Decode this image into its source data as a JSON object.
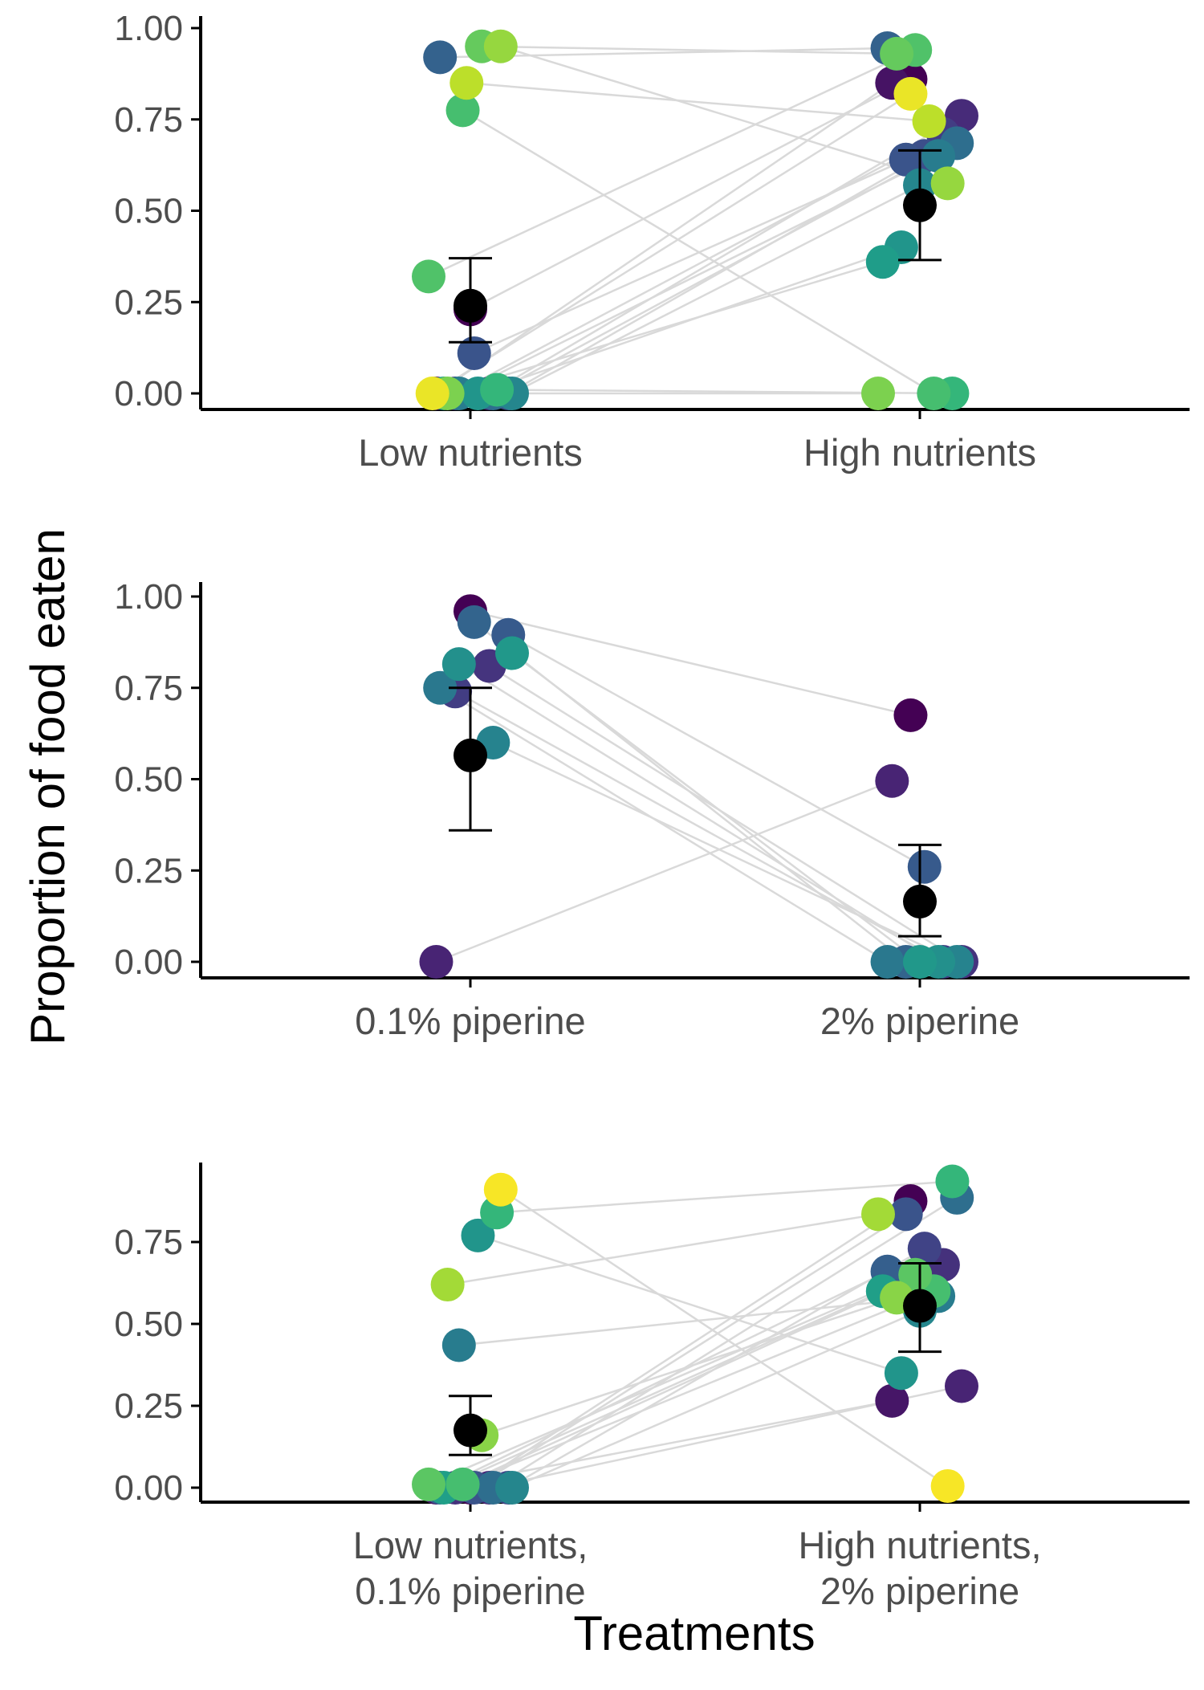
{
  "y_title": "Proportion of food eaten",
  "x_title": "Treatments",
  "colors": {
    "mean_point": "#000000",
    "connector": "#d9d9d9",
    "palette": "viridis"
  },
  "chart_data": [
    {
      "type": "scatter",
      "panel": "nutrients",
      "categories": [
        "Low nutrients",
        "High nutrients"
      ],
      "yticks": [
        "0.00",
        "0.25",
        "0.50",
        "0.75",
        "1.00"
      ],
      "ylim": [
        -0.04,
        1.04
      ],
      "mean": [
        0.24,
        0.515
      ],
      "error": [
        [
          0.14,
          0.37
        ],
        [
          0.365,
          0.665
        ]
      ],
      "pairs": [
        {
          "a": 0.23,
          "b": 0.86,
          "c": 0.0
        },
        {
          "a": 0.0,
          "b": 0.85,
          "c": 0.05
        },
        {
          "a": 0.0,
          "b": 0.76,
          "c": 0.12
        },
        {
          "a": 0.0,
          "b": 0.71,
          "c": 0.18
        },
        {
          "a": 0.0,
          "b": 0.65,
          "c": 0.24
        },
        {
          "a": 0.11,
          "b": 0.64,
          "c": 0.26
        },
        {
          "a": 0.92,
          "b": 0.945,
          "c": 0.31
        },
        {
          "a": 0.0,
          "b": 0.685,
          "c": 0.36
        },
        {
          "a": 0.0,
          "b": 0.65,
          "c": 0.42
        },
        {
          "a": 0.0,
          "b": 0.57,
          "c": 0.46
        },
        {
          "a": 0.0,
          "b": 0.4,
          "c": 0.52
        },
        {
          "a": 0.0,
          "b": 0.36,
          "c": 0.55
        },
        {
          "a": 0.01,
          "b": 0.0,
          "c": 0.66
        },
        {
          "a": 0.775,
          "b": 0.0,
          "c": 0.7
        },
        {
          "a": 0.32,
          "b": 0.94,
          "c": 0.72
        },
        {
          "a": 0.95,
          "b": 0.93,
          "c": 0.76
        },
        {
          "a": 0.0,
          "b": 0.0,
          "c": 0.8
        },
        {
          "a": 0.95,
          "b": 0.575,
          "c": 0.84
        },
        {
          "a": 0.85,
          "b": 0.745,
          "c": 0.9
        },
        {
          "a": 0.0,
          "b": 0.82,
          "c": 0.97
        }
      ]
    },
    {
      "type": "scatter",
      "panel": "piperine",
      "categories": [
        "0.1% piperine",
        "2% piperine"
      ],
      "yticks": [
        "0.00",
        "0.25",
        "0.50",
        "0.75",
        "1.00"
      ],
      "ylim": [
        -0.04,
        1.04
      ],
      "mean": [
        0.565,
        0.165
      ],
      "error": [
        [
          0.36,
          0.75
        ],
        [
          0.07,
          0.32
        ]
      ],
      "pairs": [
        {
          "a": 0.96,
          "b": 0.675,
          "c": 0.0
        },
        {
          "a": 0.0,
          "b": 0.495,
          "c": 0.1
        },
        {
          "a": 0.81,
          "b": 0.0,
          "c": 0.15
        },
        {
          "a": 0.74,
          "b": 0.0,
          "c": 0.18
        },
        {
          "a": 0.895,
          "b": 0.26,
          "c": 0.28
        },
        {
          "a": 0.93,
          "b": 0.0,
          "c": 0.32
        },
        {
          "a": 0.75,
          "b": 0.0,
          "c": 0.4
        },
        {
          "a": 0.6,
          "b": 0.0,
          "c": 0.45
        },
        {
          "a": 0.815,
          "b": 0.0,
          "c": 0.5
        },
        {
          "a": 0.845,
          "b": 0.0,
          "c": 0.53
        }
      ]
    },
    {
      "type": "scatter",
      "panel": "combined",
      "categories": [
        "Low nutrients,\n0.1% piperine",
        "High nutrients,\n2% piperine"
      ],
      "yticks": [
        "0.00",
        "0.25",
        "0.50",
        "0.75"
      ],
      "ylim": [
        -0.04,
        0.98
      ],
      "mean": [
        0.175,
        0.555
      ],
      "error": [
        [
          0.1,
          0.28
        ],
        [
          0.415,
          0.685
        ]
      ],
      "pairs": [
        {
          "a": 0.0,
          "b": 0.875,
          "c": 0.0
        },
        {
          "a": 0.0,
          "b": 0.265,
          "c": 0.06
        },
        {
          "a": 0.0,
          "b": 0.31,
          "c": 0.1
        },
        {
          "a": 0.0,
          "b": 0.68,
          "c": 0.14
        },
        {
          "a": 0.0,
          "b": 0.73,
          "c": 0.2
        },
        {
          "a": 0.0,
          "b": 0.835,
          "c": 0.26
        },
        {
          "a": 0.0,
          "b": 0.66,
          "c": 0.3
        },
        {
          "a": 0.0,
          "b": 0.885,
          "c": 0.36
        },
        {
          "a": 0.435,
          "b": 0.585,
          "c": 0.42
        },
        {
          "a": 0.0,
          "b": 0.54,
          "c": 0.46
        },
        {
          "a": 0.77,
          "b": 0.35,
          "c": 0.52
        },
        {
          "a": 0.0,
          "b": 0.6,
          "c": 0.56
        },
        {
          "a": 0.84,
          "b": 0.935,
          "c": 0.66
        },
        {
          "a": 0.01,
          "b": 0.6,
          "c": 0.7
        },
        {
          "a": 0.01,
          "b": 0.65,
          "c": 0.74
        },
        {
          "a": 0.16,
          "b": 0.58,
          "c": 0.82
        },
        {
          "a": 0.62,
          "b": 0.835,
          "c": 0.86
        },
        {
          "a": 0.91,
          "b": 0.005,
          "c": 0.99
        }
      ]
    }
  ]
}
